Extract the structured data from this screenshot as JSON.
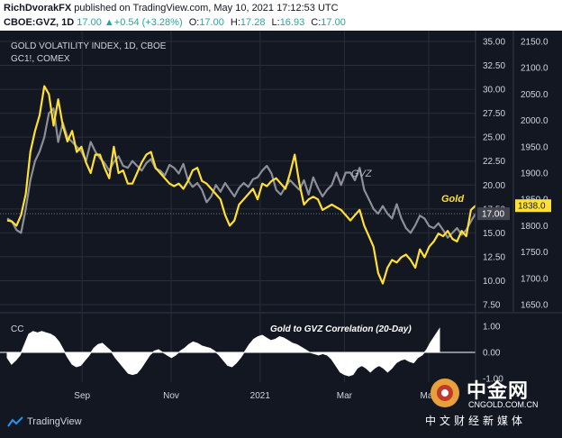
{
  "header": {
    "author": "RichDvorakFX",
    "published_text": "published on TradingView.com, May 10, 2021 17:12:53 UTC",
    "symbol": "CBOE:GVZ, 1D",
    "last": "17.00",
    "change": "+0.54 (+3.28%)",
    "o_label": "O:",
    "o_value": "17.00",
    "h_label": "H:",
    "h_value": "17.28",
    "l_label": "L:",
    "l_value": "16.93",
    "c_label": "C:",
    "c_value": "17.00"
  },
  "footer": {
    "brand": "TradingView"
  },
  "watermark": {
    "name": "中金网",
    "site": "CNGOLD.COM.CN",
    "subtitle": "中文财经新媒体"
  },
  "colors": {
    "background": "#131722",
    "gold": "#ffe033",
    "gvz": "#8c8f96",
    "grid": "#2a2e39",
    "cc_fill": "#ffffff",
    "last_price_badge": "#ffe033"
  },
  "chart_data": [
    {
      "type": "line",
      "legend": [
        "GOLD VOLATILITY INDEX, 1D, CBOE",
        "GC1!, COMEX"
      ],
      "annotations": {
        "gvz": "GVZ",
        "gold": "Gold"
      },
      "x_ticks": [
        "Sep",
        "Nov",
        "2021",
        "Mar",
        "May"
      ],
      "y_left": {
        "min": 7.5,
        "max": 35.0,
        "ticks": [
          "35.00",
          "32.50",
          "30.00",
          "27.50",
          "25.00",
          "22.50",
          "20.00",
          "17.50",
          "15.00",
          "12.50",
          "10.00",
          "7.50"
        ]
      },
      "y_right": {
        "min": 1650,
        "max": 2150,
        "ticks": [
          "2150.0",
          "2100.0",
          "2050.0",
          "2000.0",
          "1950.0",
          "1900.0",
          "1850.0",
          "1800.0",
          "1750.0",
          "1700.0",
          "1650.0"
        ]
      },
      "last_values": {
        "gvz": "17.00",
        "gold": "1838.0"
      },
      "series": [
        {
          "name": "GVZ",
          "axis": "left",
          "values": [
            16.5,
            16.2,
            15.3,
            15.0,
            17.5,
            20.5,
            22.5,
            23.5,
            25.0,
            27.5,
            28.0,
            24.5,
            26.5,
            25.0,
            24.5,
            24.0,
            23.5,
            22.5,
            24.5,
            23.5,
            22.8,
            22.3,
            21.5,
            22.4,
            23.0,
            22.0,
            21.8,
            22.5,
            22.0,
            21.5,
            22.3,
            22.7,
            21.7,
            21.5,
            21.0,
            22.1,
            21.8,
            21.2,
            22.2,
            20.5,
            19.8,
            20.2,
            19.5,
            18.2,
            18.8,
            20.0,
            19.3,
            20.2,
            19.5,
            18.8,
            19.7,
            20.2,
            19.8,
            20.6,
            20.8,
            21.5,
            22.0,
            21.2,
            19.5,
            19.0,
            19.8,
            20.5,
            20.0,
            19.5,
            20.5,
            19.0,
            20.8,
            19.7,
            18.8,
            19.5,
            20.0,
            21.3,
            20.0,
            21.3,
            21.3,
            20.5,
            21.8,
            19.5,
            18.5,
            17.5,
            17.0,
            17.8,
            17.0,
            16.5,
            18.0,
            16.5,
            15.5,
            15.0,
            15.8,
            16.8,
            16.5,
            15.7,
            15.5,
            16.0,
            15.3,
            14.5,
            15.0,
            15.5,
            14.8,
            15.3,
            16.2,
            17.0
          ]
        },
        {
          "name": "Gold",
          "axis": "right",
          "values": [
            1810,
            1808,
            1800,
            1820,
            1860,
            1940,
            1980,
            2010,
            2065,
            2050,
            1990,
            2040,
            1990,
            1960,
            1980,
            1940,
            1950,
            1920,
            1900,
            1935,
            1935,
            1910,
            1890,
            1950,
            1900,
            1905,
            1880,
            1880,
            1900,
            1920,
            1935,
            1940,
            1910,
            1900,
            1890,
            1880,
            1875,
            1880,
            1870,
            1885,
            1905,
            1910,
            1885,
            1880,
            1870,
            1860,
            1850,
            1820,
            1800,
            1810,
            1840,
            1850,
            1860,
            1870,
            1850,
            1880,
            1875,
            1885,
            1890,
            1880,
            1870,
            1900,
            1935,
            1880,
            1840,
            1850,
            1855,
            1850,
            1830,
            1835,
            1840,
            1835,
            1830,
            1820,
            1810,
            1820,
            1830,
            1800,
            1780,
            1760,
            1710,
            1690,
            1720,
            1735,
            1730,
            1740,
            1745,
            1735,
            1720,
            1755,
            1740,
            1760,
            1770,
            1785,
            1780,
            1790,
            1775,
            1770,
            1790,
            1780,
            1830,
            1838
          ]
        },
        {
          "name": "Gold to GVZ Correlation (20-Day)",
          "panel": "lower",
          "ylim": [
            -1.0,
            1.0
          ],
          "y_ticks": [
            "1.00",
            "0.00",
            "-1.00"
          ],
          "pane_label": "CC",
          "values": [
            -0.2,
            -0.45,
            -0.3,
            -0.1,
            0.3,
            0.7,
            0.8,
            0.75,
            0.8,
            0.75,
            0.7,
            0.6,
            0.4,
            0.1,
            -0.2,
            -0.45,
            -0.55,
            -0.5,
            -0.3,
            -0.1,
            0.15,
            0.3,
            0.35,
            0.2,
            0.05,
            -0.2,
            -0.4,
            -0.6,
            -0.8,
            -0.85,
            -0.8,
            -0.6,
            -0.35,
            -0.1,
            0.05,
            0.1,
            0.0,
            -0.1,
            -0.2,
            -0.1,
            0.05,
            0.15,
            0.3,
            0.4,
            0.35,
            0.25,
            0.2,
            0.15,
            0.05,
            -0.1,
            -0.3,
            -0.5,
            -0.55,
            -0.4,
            -0.2,
            0.05,
            0.3,
            0.5,
            0.6,
            0.65,
            0.55,
            0.45,
            0.5,
            0.6,
            0.55,
            0.45,
            0.35,
            0.3,
            0.2,
            0.1,
            0.0,
            -0.05,
            -0.1,
            -0.05,
            -0.1,
            -0.25,
            -0.5,
            -0.75,
            -0.85,
            -0.9,
            -0.85,
            -0.6,
            -0.5,
            -0.6,
            -0.75,
            -0.6,
            -0.5,
            -0.6,
            -0.75,
            -0.6,
            -0.4,
            -0.3,
            -0.25,
            -0.35,
            -0.4,
            -0.2,
            -0.1,
            0.1,
            0.4,
            0.65,
            0.9
          ]
        }
      ]
    }
  ]
}
